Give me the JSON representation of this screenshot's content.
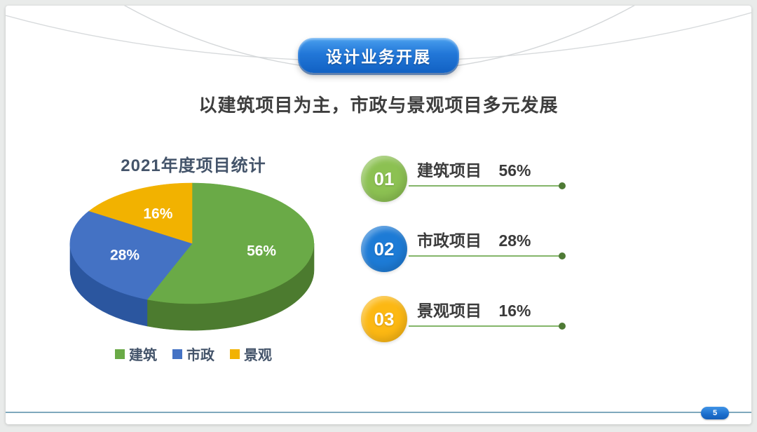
{
  "slide": {
    "badge_label": "设计业务开展",
    "subtitle": "以建筑项目为主，市政与景观项目多元发展",
    "page_number": "5"
  },
  "chart_data": {
    "type": "pie",
    "is_3d": true,
    "title": "2021年度项目统计",
    "categories": [
      "建筑",
      "市政",
      "景观"
    ],
    "values": [
      56,
      28,
      16
    ],
    "unit": "%",
    "labels": [
      "56%",
      "28%",
      "16%"
    ],
    "colors": [
      "#6AAA47",
      "#4472C4",
      "#F2B200"
    ],
    "side_colors": [
      "#4C7B2F",
      "#2B569F",
      "#C08900"
    ],
    "start_angle_deg": 0,
    "direction": "clockwise",
    "legend_position": "bottom"
  },
  "items": [
    {
      "number": "01",
      "label": "建筑项目",
      "value": "56%",
      "circle_color": "#8CC152"
    },
    {
      "number": "02",
      "label": "市政项目",
      "value": "28%",
      "circle_color": "#1D7BD6"
    },
    {
      "number": "03",
      "label": "景观项目",
      "value": "16%",
      "circle_color": "#FCB813"
    }
  ],
  "colors": {
    "accent_line": "#84B56A",
    "dot": "#4E7A35",
    "bottom_line": "#7FA8BD",
    "title_color": "#44546A",
    "badge_blue": "#1E6FD0"
  }
}
